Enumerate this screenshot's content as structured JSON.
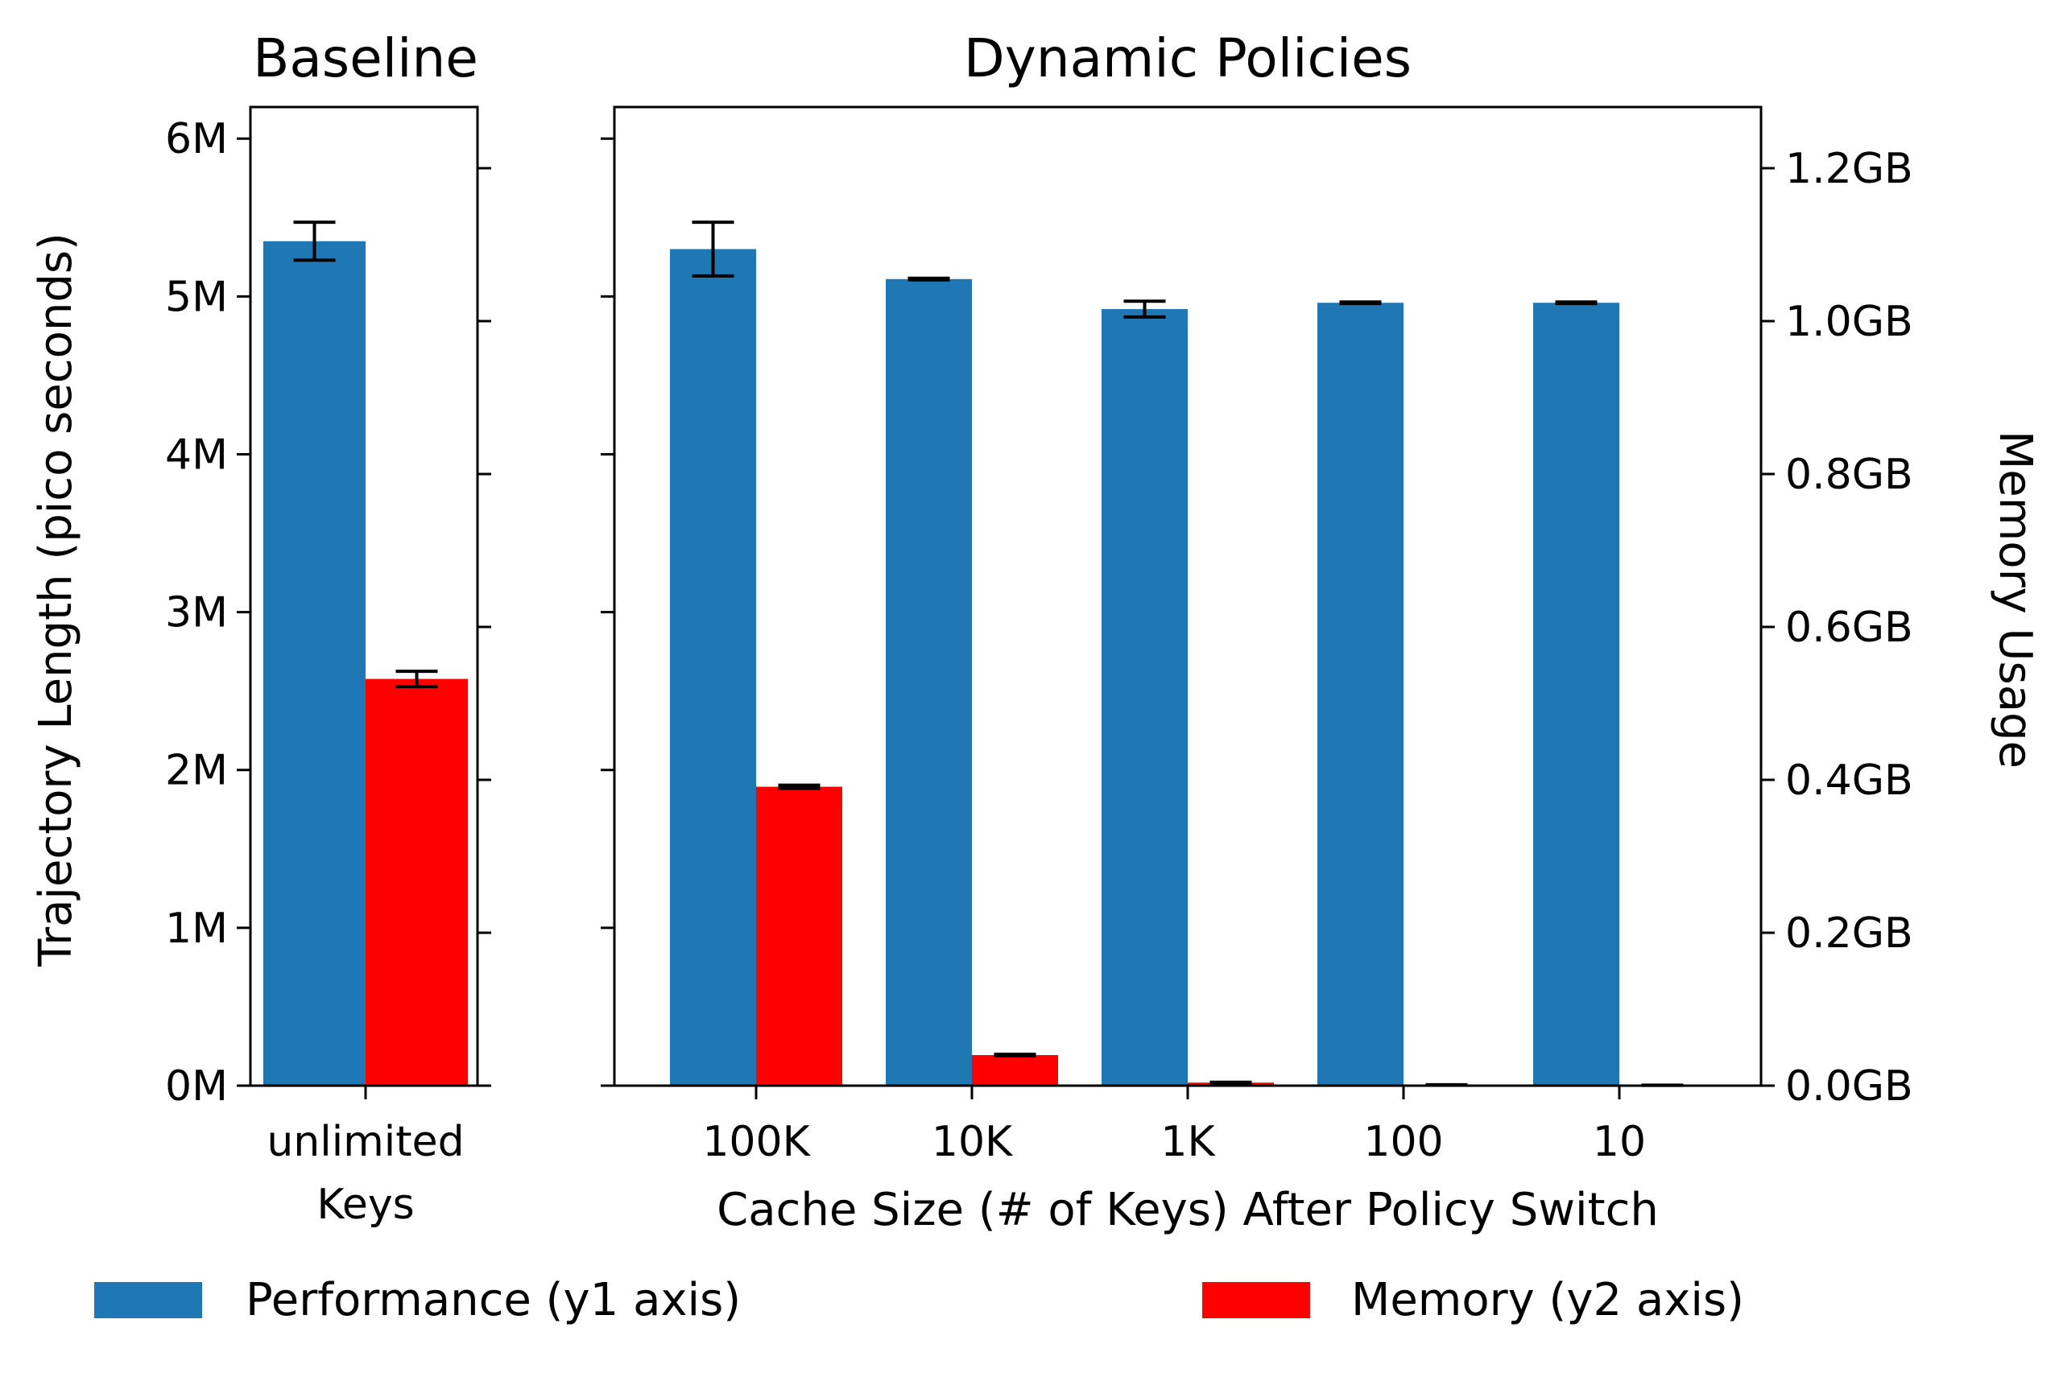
{
  "chart_data": [
    {
      "type": "bar",
      "title": "Baseline",
      "categories": [
        "unlimited\nKeys"
      ],
      "ylabel": "Trajectory Length (pico seconds)",
      "y2label": "",
      "ylim": [
        0,
        6200000
      ],
      "y2lim": [
        0,
        1.28
      ],
      "y_ticks": [
        "0M",
        "1M",
        "2M",
        "3M",
        "4M",
        "5M",
        "6M"
      ],
      "series": [
        {
          "name": "Performance (y1 axis)",
          "axis": "y1",
          "color": "#1f77b4",
          "values": [
            5350000
          ],
          "errors": [
            120000
          ]
        },
        {
          "name": "Memory (y2 axis)",
          "axis": "y2",
          "color": "#ff0000",
          "values": [
            0.532
          ],
          "errors": [
            0.01
          ]
        }
      ]
    },
    {
      "type": "bar",
      "title": "Dynamic Policies",
      "categories": [
        "100K",
        "10K",
        "1K",
        "100",
        "10"
      ],
      "xlabel": "Cache Size (# of Keys) After Policy Switch",
      "y2label": "Memory Usage",
      "ylim": [
        0,
        6200000
      ],
      "y2lim": [
        0,
        1.28
      ],
      "y2_ticks": [
        "0.0GB",
        "0.2GB",
        "0.4GB",
        "0.6GB",
        "0.8GB",
        "1.0GB",
        "1.2GB"
      ],
      "series": [
        {
          "name": "Performance (y1 axis)",
          "axis": "y1",
          "color": "#1f77b4",
          "values": [
            5300000,
            5110000,
            4920000,
            4960000,
            4960000
          ],
          "errors": [
            170000,
            5000,
            50000,
            5000,
            5000
          ]
        },
        {
          "name": "Memory (y2 axis)",
          "axis": "y2",
          "color": "#ff0000",
          "values": [
            0.391,
            0.04,
            0.004,
            0.001,
            0.0005
          ],
          "errors": [
            0.002,
            0.001,
            0.0005,
            0.0002,
            0.0001
          ]
        }
      ]
    }
  ],
  "legend": [
    {
      "label": "Performance (y1 axis)",
      "color": "#1f77b4"
    },
    {
      "label": "Memory (y2 axis)",
      "color": "#ff0000"
    }
  ]
}
